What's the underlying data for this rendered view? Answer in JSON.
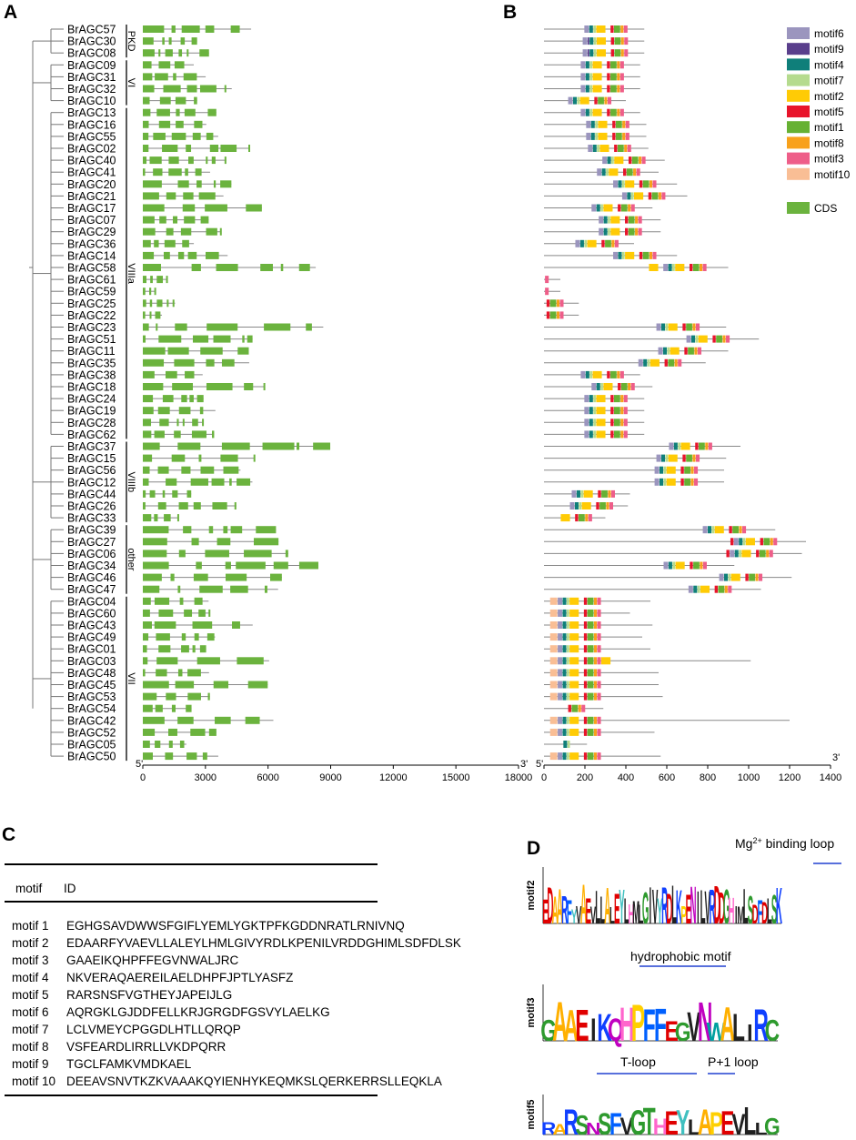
{
  "panels": {
    "a": "A",
    "b": "B",
    "c": "C",
    "d": "D"
  },
  "genes": [
    {
      "name": "BrAGC57",
      "len": 490,
      "motifs": [
        "motif6",
        "motif4",
        "motif7",
        "motif2",
        "motif5",
        "motif1",
        "motif8",
        "motif3"
      ]
    },
    {
      "name": "BrAGC30",
      "len": 490,
      "motifs": [
        "motif6",
        "motif9",
        "motif4",
        "motif7",
        "motif2",
        "motif5",
        "motif1",
        "motif8",
        "motif3"
      ]
    },
    {
      "name": "BrAGC08",
      "len": 490,
      "motifs": [
        "motif6",
        "motif9",
        "motif4",
        "motif7",
        "motif2",
        "motif5",
        "motif1",
        "motif8",
        "motif3"
      ]
    },
    {
      "name": "BrAGC09",
      "len": 470,
      "motifs": [
        "motif6",
        "motif4",
        "motif7",
        "motif2",
        "motif5",
        "motif1",
        "motif8",
        "motif3"
      ]
    },
    {
      "name": "BrAGC31",
      "len": 470,
      "motifs": [
        "motif6",
        "motif4",
        "motif7",
        "motif2",
        "motif5",
        "motif1",
        "motif8",
        "motif3"
      ]
    },
    {
      "name": "BrAGC32",
      "len": 470,
      "motifs": [
        "motif6",
        "motif4",
        "motif7",
        "motif2",
        "motif5",
        "motif1",
        "motif8",
        "motif3"
      ]
    },
    {
      "name": "BrAGC10",
      "len": 400,
      "motifs": [
        "motif6",
        "motif4",
        "motif7",
        "motif2",
        "motif5",
        "motif1",
        "motif8",
        "motif3"
      ]
    },
    {
      "name": "BrAGC13",
      "len": 470,
      "motifs": [
        "motif6",
        "motif4",
        "motif7",
        "motif2",
        "motif5",
        "motif1",
        "motif8",
        "motif3"
      ]
    },
    {
      "name": "BrAGC16",
      "len": 500,
      "motifs": [
        "motif6",
        "motif4",
        "motif7",
        "motif2",
        "motif5",
        "motif1",
        "motif8",
        "motif3"
      ]
    },
    {
      "name": "BrAGC55",
      "len": 500,
      "motifs": [
        "motif6",
        "motif4",
        "motif7",
        "motif2",
        "motif5",
        "motif1",
        "motif8",
        "motif3"
      ]
    },
    {
      "name": "BrAGC02",
      "len": 510,
      "motifs": [
        "motif6",
        "motif4",
        "motif7",
        "motif2",
        "motif5",
        "motif1",
        "motif8",
        "motif3"
      ]
    },
    {
      "name": "BrAGC40",
      "len": 590,
      "motifs": [
        "motif6",
        "motif4",
        "motif7",
        "motif2",
        "motif5",
        "motif1",
        "motif8",
        "motif3"
      ]
    },
    {
      "name": "BrAGC41",
      "len": 560,
      "motifs": [
        "motif6",
        "motif4",
        "motif7",
        "motif2",
        "motif5",
        "motif1",
        "motif8",
        "motif3"
      ]
    },
    {
      "name": "BrAGC20",
      "len": 650,
      "motifs": [
        "motif6",
        "motif4",
        "motif7",
        "motif2",
        "motif5",
        "motif1",
        "motif8",
        "motif3"
      ]
    },
    {
      "name": "BrAGC21",
      "len": 700,
      "motifs": [
        "motif6",
        "motif4",
        "motif7",
        "motif2",
        "motif5",
        "motif1",
        "motif8",
        "motif3"
      ]
    },
    {
      "name": "BrAGC17",
      "len": 530,
      "motifs": [
        "motif6",
        "motif4",
        "motif7",
        "motif2",
        "motif5",
        "motif1",
        "motif8",
        "motif3"
      ]
    },
    {
      "name": "BrAGC07",
      "len": 570,
      "motifs": [
        "motif6",
        "motif4",
        "motif7",
        "motif2",
        "motif5",
        "motif1",
        "motif8",
        "motif3"
      ]
    },
    {
      "name": "BrAGC29",
      "len": 570,
      "motifs": [
        "motif6",
        "motif4",
        "motif7",
        "motif2",
        "motif5",
        "motif1",
        "motif8",
        "motif3"
      ]
    },
    {
      "name": "BrAGC36",
      "len": 440,
      "motifs": [
        "motif6",
        "motif4",
        "motif7",
        "motif2",
        "motif5",
        "motif1",
        "motif8",
        "motif3"
      ]
    },
    {
      "name": "BrAGC14",
      "len": 650,
      "motifs": [
        "motif6",
        "motif4",
        "motif7",
        "motif2",
        "motif5",
        "motif1",
        "motif8",
        "motif3"
      ]
    },
    {
      "name": "BrAGC58",
      "len": 900,
      "motifs": [
        "motif2",
        "motif6",
        "motif4",
        "motif7",
        "motif2",
        "motif5",
        "motif1",
        "motif8",
        "motif3"
      ]
    },
    {
      "name": "BrAGC61",
      "len": 80,
      "motifs": [
        "motif3"
      ]
    },
    {
      "name": "BrAGC59",
      "len": 80,
      "motifs": [
        "motif3"
      ]
    },
    {
      "name": "BrAGC25",
      "len": 170,
      "motifs": [
        "motif5",
        "motif1",
        "motif8",
        "motif3"
      ]
    },
    {
      "name": "BrAGC22",
      "len": 170,
      "motifs": [
        "motif5",
        "motif1",
        "motif8",
        "motif3"
      ]
    },
    {
      "name": "BrAGC23",
      "len": 890,
      "motifs": [
        "motif6",
        "motif4",
        "motif7",
        "motif2",
        "motif5",
        "motif1",
        "motif8",
        "motif3"
      ]
    },
    {
      "name": "BrAGC51",
      "len": 1050,
      "motifs": [
        "motif6",
        "motif4",
        "motif7",
        "motif2",
        "motif5",
        "motif1",
        "motif8",
        "motif3"
      ]
    },
    {
      "name": "BrAGC11",
      "len": 900,
      "motifs": [
        "motif6",
        "motif4",
        "motif7",
        "motif2",
        "motif5",
        "motif1",
        "motif8",
        "motif3"
      ]
    },
    {
      "name": "BrAGC35",
      "len": 790,
      "motifs": [
        "motif6",
        "motif4",
        "motif7",
        "motif2",
        "motif5",
        "motif1",
        "motif8",
        "motif3"
      ]
    },
    {
      "name": "BrAGC38",
      "len": 470,
      "motifs": [
        "motif6",
        "motif4",
        "motif7",
        "motif2",
        "motif5",
        "motif1",
        "motif8",
        "motif3"
      ]
    },
    {
      "name": "BrAGC18",
      "len": 530,
      "motifs": [
        "motif6",
        "motif4",
        "motif7",
        "motif2",
        "motif5",
        "motif1",
        "motif8",
        "motif3"
      ]
    },
    {
      "name": "BrAGC24",
      "len": 490,
      "motifs": [
        "motif6",
        "motif4",
        "motif7",
        "motif2",
        "motif5",
        "motif1",
        "motif8",
        "motif3"
      ]
    },
    {
      "name": "BrAGC19",
      "len": 490,
      "motifs": [
        "motif6",
        "motif4",
        "motif7",
        "motif2",
        "motif5",
        "motif1",
        "motif8",
        "motif3"
      ]
    },
    {
      "name": "BrAGC28",
      "len": 490,
      "motifs": [
        "motif6",
        "motif4",
        "motif7",
        "motif2",
        "motif5",
        "motif1",
        "motif8",
        "motif3"
      ]
    },
    {
      "name": "BrAGC62",
      "len": 490,
      "motifs": [
        "motif6",
        "motif4",
        "motif7",
        "motif2",
        "motif5",
        "motif1",
        "motif8",
        "motif3"
      ]
    },
    {
      "name": "BrAGC37",
      "len": 960,
      "motifs": [
        "motif6",
        "motif4",
        "motif7",
        "motif2",
        "motif5",
        "motif1",
        "motif8",
        "motif3"
      ]
    },
    {
      "name": "BrAGC15",
      "len": 890,
      "motifs": [
        "motif6",
        "motif4",
        "motif7",
        "motif2",
        "motif5",
        "motif1",
        "motif8",
        "motif3"
      ]
    },
    {
      "name": "BrAGC56",
      "len": 880,
      "motifs": [
        "motif6",
        "motif4",
        "motif7",
        "motif2",
        "motif5",
        "motif1",
        "motif8",
        "motif3"
      ]
    },
    {
      "name": "BrAGC12",
      "len": 880,
      "motifs": [
        "motif6",
        "motif4",
        "motif7",
        "motif2",
        "motif5",
        "motif1",
        "motif8",
        "motif3"
      ]
    },
    {
      "name": "BrAGC44",
      "len": 420,
      "motifs": [
        "motif6",
        "motif4",
        "motif7",
        "motif2",
        "motif5",
        "motif1",
        "motif8",
        "motif3"
      ]
    },
    {
      "name": "BrAGC26",
      "len": 410,
      "motifs": [
        "motif6",
        "motif4",
        "motif7",
        "motif2",
        "motif5",
        "motif1",
        "motif8",
        "motif3"
      ]
    },
    {
      "name": "BrAGC33",
      "len": 300,
      "motifs": [
        "motif2",
        "motif5",
        "motif1",
        "motif8",
        "motif3"
      ]
    },
    {
      "name": "BrAGC39",
      "len": 1130,
      "motifs": [
        "motif6",
        "motif4",
        "motif7",
        "motif2",
        "motif5",
        "motif1",
        "motif8",
        "motif3"
      ]
    },
    {
      "name": "BrAGC27",
      "len": 1280,
      "motifs": [
        "motif5",
        "motif6",
        "motif4",
        "motif7",
        "motif2",
        "motif5",
        "motif1",
        "motif8",
        "motif3"
      ]
    },
    {
      "name": "BrAGC06",
      "len": 1260,
      "motifs": [
        "motif5",
        "motif6",
        "motif4",
        "motif7",
        "motif2",
        "motif5",
        "motif1",
        "motif8",
        "motif3"
      ]
    },
    {
      "name": "BrAGC34",
      "len": 930,
      "motifs": [
        "motif6",
        "motif4",
        "motif7",
        "motif2",
        "motif5",
        "motif1",
        "motif8",
        "motif3"
      ]
    },
    {
      "name": "BrAGC46",
      "len": 1210,
      "motifs": [
        "motif6",
        "motif4",
        "motif7",
        "motif2",
        "motif5",
        "motif1",
        "motif8",
        "motif3"
      ]
    },
    {
      "name": "BrAGC47",
      "len": 1060,
      "motifs": [
        "motif6",
        "motif4",
        "motif7",
        "motif2",
        "motif5",
        "motif1",
        "motif8",
        "motif3"
      ]
    },
    {
      "name": "BrAGC04",
      "len": 520,
      "motifs": [
        "motif10",
        "motif6",
        "motif4",
        "motif7",
        "motif2",
        "motif5",
        "motif1",
        "motif8",
        "motif3"
      ]
    },
    {
      "name": "BrAGC60",
      "len": 420,
      "motifs": [
        "motif10",
        "motif6",
        "motif4",
        "motif7",
        "motif2",
        "motif5",
        "motif1",
        "motif8",
        "motif3"
      ]
    },
    {
      "name": "BrAGC43",
      "len": 530,
      "motifs": [
        "motif10",
        "motif6",
        "motif4",
        "motif7",
        "motif2",
        "motif5",
        "motif1",
        "motif8",
        "motif3"
      ]
    },
    {
      "name": "BrAGC49",
      "len": 480,
      "motifs": [
        "motif10",
        "motif6",
        "motif4",
        "motif7",
        "motif2",
        "motif5",
        "motif1",
        "motif8",
        "motif3"
      ]
    },
    {
      "name": "BrAGC01",
      "len": 520,
      "motifs": [
        "motif10",
        "motif6",
        "motif4",
        "motif7",
        "motif2",
        "motif5",
        "motif1",
        "motif8",
        "motif3"
      ]
    },
    {
      "name": "BrAGC03",
      "len": 1010,
      "motifs": [
        "motif10",
        "motif6",
        "motif4",
        "motif7",
        "motif2",
        "motif5",
        "motif1",
        "motif8",
        "motif3",
        "motif2"
      ]
    },
    {
      "name": "BrAGC48",
      "len": 560,
      "motifs": [
        "motif10",
        "motif6",
        "motif4",
        "motif7",
        "motif2",
        "motif5",
        "motif1",
        "motif8",
        "motif3"
      ]
    },
    {
      "name": "BrAGC45",
      "len": 560,
      "motifs": [
        "motif10",
        "motif6",
        "motif4",
        "motif7",
        "motif2",
        "motif5",
        "motif1",
        "motif8",
        "motif3"
      ]
    },
    {
      "name": "BrAGC53",
      "len": 580,
      "motifs": [
        "motif10",
        "motif6",
        "motif4",
        "motif7",
        "motif2",
        "motif5",
        "motif1",
        "motif8",
        "motif3"
      ]
    },
    {
      "name": "BrAGC54",
      "len": 290,
      "motifs": [
        "motif5",
        "motif1",
        "motif8",
        "motif3"
      ]
    },
    {
      "name": "BrAGC42",
      "len": 1200,
      "motifs": [
        "motif10",
        "motif6",
        "motif4",
        "motif7",
        "motif2",
        "motif5",
        "motif1",
        "motif8",
        "motif3"
      ]
    },
    {
      "name": "BrAGC52",
      "len": 540,
      "motifs": [
        "motif10",
        "motif6",
        "motif4",
        "motif7",
        "motif2",
        "motif5",
        "motif1",
        "motif8",
        "motif3"
      ]
    },
    {
      "name": "BrAGC05",
      "len": 210,
      "motifs": [
        "motif4",
        "motif7"
      ]
    },
    {
      "name": "BrAGC50",
      "len": 570,
      "motifs": [
        "motif10",
        "motif6",
        "motif4",
        "motif7",
        "motif2",
        "motif5",
        "motif1",
        "motif8",
        "motif3"
      ]
    }
  ],
  "groups": [
    {
      "label": "PKD",
      "first": 0,
      "last": 2
    },
    {
      "label": "VI",
      "first": 3,
      "last": 6
    },
    {
      "label": "VIIIa",
      "first": 7,
      "last": 34
    },
    {
      "label": "VIIIb",
      "first": 35,
      "last": 41
    },
    {
      "label": "other",
      "first": 42,
      "last": 47
    },
    {
      "label": "VII",
      "first": 48,
      "last": 61
    }
  ],
  "axis_a": {
    "ticks": [
      0,
      3000,
      6000,
      9000,
      12000,
      15000,
      18000
    ],
    "max": 18000,
    "left_end": "5'",
    "right_end": "3'"
  },
  "axis_b": {
    "ticks": [
      0,
      200,
      400,
      600,
      800,
      1000,
      1200,
      1400
    ],
    "max": 1400,
    "left_end": "5'",
    "right_end": "3'"
  },
  "legend": [
    {
      "id": "motif6",
      "label": "motif6",
      "color": "#9B95BE"
    },
    {
      "id": "motif9",
      "label": "motif9",
      "color": "#5A3F8C"
    },
    {
      "id": "motif4",
      "label": "motif4",
      "color": "#0F7F7A"
    },
    {
      "id": "motif7",
      "label": "motif7",
      "color": "#B5DB8E"
    },
    {
      "id": "motif2",
      "label": "motif2",
      "color": "#FFCB05"
    },
    {
      "id": "motif5",
      "label": "motif5",
      "color": "#E8142B"
    },
    {
      "id": "motif1",
      "label": "motif1",
      "color": "#66B133"
    },
    {
      "id": "motif8",
      "label": "motif8",
      "color": "#F8A11B"
    },
    {
      "id": "motif3",
      "label": "motif3",
      "color": "#EE5E89"
    },
    {
      "id": "motif10",
      "label": "motif10",
      "color": "#F9BE95"
    }
  ],
  "cds_legend": {
    "label": "CDS",
    "color": "#6BB33E"
  },
  "table": {
    "header": {
      "col1": "motif",
      "col2": "ID"
    },
    "rows": [
      {
        "name": "motif 1",
        "seq": "EGHGSAVDWWSFGIFLYEMLYGKTPFKGDDNRATLRNIVNQ"
      },
      {
        "name": "motif 2",
        "seq": "EDAARFYVAEVLLALEYLHMLGIVYRDLKPENILVRDDGHIMLSDFDLSK"
      },
      {
        "name": "motif 3",
        "seq": "GAAEIKQHPFFEGVNWALJRC"
      },
      {
        "name": "motif 4",
        "seq": "NKVERAQAEREILAELDHPFJPTLYASFZ"
      },
      {
        "name": "motif 5",
        "seq": "RARSNSFVGTHEYJAPEIJLG"
      },
      {
        "name": "motif 6",
        "seq": "AQRGKLGJDDFELLKRJGRGDFGSVYLAELKG"
      },
      {
        "name": "motif 7",
        "seq": "LCLVMEYCPGGDLHTLLQRQP"
      },
      {
        "name": "motif 8",
        "seq": "VSFEARDLIRRLLVKDPQRR"
      },
      {
        "name": "motif 9",
        "seq": "TGCLFAMKVMDKAEL"
      },
      {
        "name": "motif 10",
        "seq": "DEEAVSNVTKZKVAAAKQYIENHYKEQMKSLQERKERRSLLEQKLA"
      }
    ]
  },
  "logos": [
    {
      "id": "motif2",
      "ylabel": "motif2",
      "annotation": "Mg",
      "annotation_sup": "2+",
      "annotation_rest": " binding loop",
      "letters": "EDAARFYVAEVLLALEYLHMLGIVYRDLKPENILVRDDGHIMLSDFDLSK"
    },
    {
      "id": "motif3",
      "ylabel": "motif3",
      "annotation": "hydrophobic motif",
      "letters": "GAAEIKQHPFFEGVNWALIRC"
    },
    {
      "id": "motif5",
      "ylabel": "motif5",
      "annotation": "T-loop",
      "annotation2": "P+1 loop",
      "letters": "RARSNSFVGTHEYLAPEVLLG"
    }
  ]
}
